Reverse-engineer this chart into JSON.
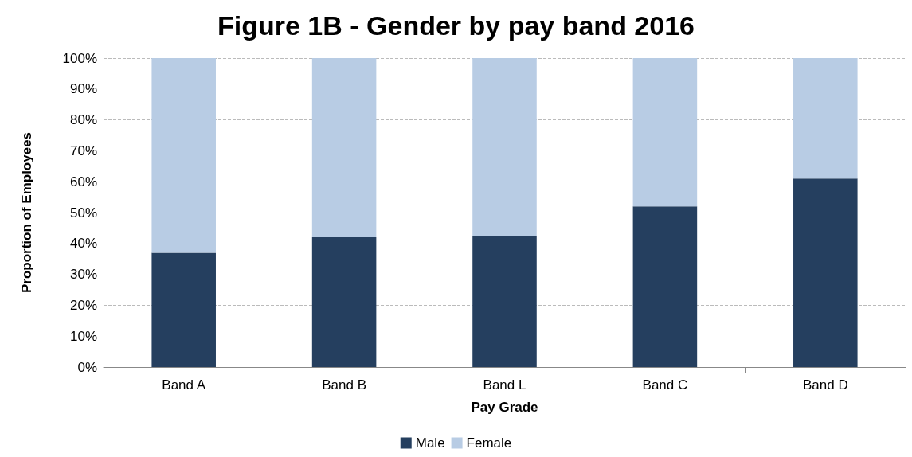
{
  "chart_data": {
    "type": "bar",
    "title": "Figure 1B - Gender by pay band 2016",
    "xlabel": "Pay Grade",
    "ylabel": "Proportion of Employees",
    "categories": [
      "Band A",
      "Band B",
      "Band L",
      "Band C",
      "Band D"
    ],
    "stacked": true,
    "series": [
      {
        "name": "Male",
        "color": "#253f5f",
        "values": [
          37,
          42,
          42.5,
          52,
          61
        ]
      },
      {
        "name": "Female",
        "color": "#b8cce4",
        "values": [
          63,
          58,
          57.5,
          48,
          39
        ]
      }
    ],
    "ylim": [
      0,
      100
    ],
    "yticks": [
      {
        "value": 0,
        "label": "0%"
      },
      {
        "value": 10,
        "label": "10%"
      },
      {
        "value": 20,
        "label": "20%"
      },
      {
        "value": 30,
        "label": "30%"
      },
      {
        "value": 40,
        "label": "40%"
      },
      {
        "value": 50,
        "label": "50%"
      },
      {
        "value": 60,
        "label": "60%"
      },
      {
        "value": 70,
        "label": "70%"
      },
      {
        "value": 80,
        "label": "80%"
      },
      {
        "value": 90,
        "label": "90%"
      },
      {
        "value": 100,
        "label": "100%"
      }
    ],
    "grid": "y",
    "legend": "bottom"
  }
}
